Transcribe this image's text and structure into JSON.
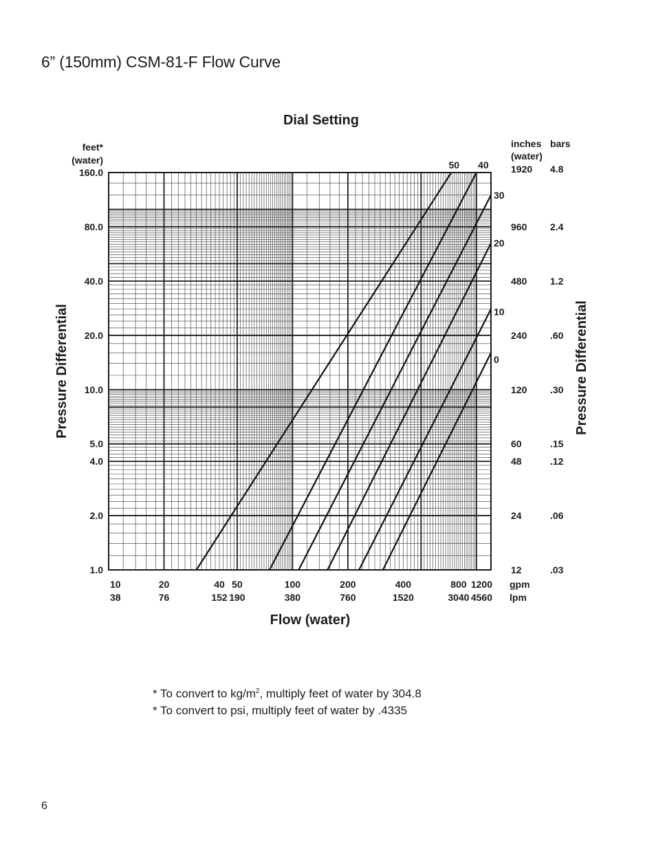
{
  "page": {
    "title": "6” (150mm) CSM-81-F Flow Curve",
    "page_number": "6"
  },
  "footnotes": {
    "kg_pre": "* To convert to kg/m",
    "kg_sup": "2",
    "kg_post": ", multiply feet of water by 304.8",
    "psi": "* To convert to psi, multiply feet of water by .4335"
  },
  "chart_data": {
    "type": "line",
    "title": "Dial Setting",
    "xlabel": "Flow (water)",
    "ylabel": "Pressure Differential",
    "ylabel_right": "Pressure Differential",
    "x_scale": "log",
    "y_scale": "log",
    "xlim": [
      10,
      1200
    ],
    "ylim": [
      1.0,
      160.0
    ],
    "grid": true,
    "left_unit_label": [
      "feet*",
      "(water)"
    ],
    "right_unit_labels": {
      "inches": [
        "inches",
        "(water)"
      ],
      "bars": "bars"
    },
    "x_ticks": [
      {
        "gpm": 10,
        "gpm_label": "10",
        "lpm_label": "38"
      },
      {
        "gpm": 20,
        "gpm_label": "20",
        "lpm_label": "76"
      },
      {
        "gpm": 40,
        "gpm_label": "40",
        "lpm_label": "152"
      },
      {
        "gpm": 50,
        "gpm_label": "50",
        "lpm_label": "190"
      },
      {
        "gpm": 100,
        "gpm_label": "100",
        "lpm_label": "380"
      },
      {
        "gpm": 200,
        "gpm_label": "200",
        "lpm_label": "760"
      },
      {
        "gpm": 400,
        "gpm_label": "400",
        "lpm_label": "1520"
      },
      {
        "gpm": 800,
        "gpm_label": "800",
        "lpm_label": "3040"
      },
      {
        "gpm": 1200,
        "gpm_label": "1200",
        "lpm_label": "4560"
      }
    ],
    "x_unit_labels": [
      "gpm",
      "lpm"
    ],
    "y_ticks": [
      {
        "feet": 160.0,
        "label": "160.0",
        "inches": "1920",
        "bars": "4.8"
      },
      {
        "feet": 80.0,
        "label": "80.0",
        "inches": "960",
        "bars": "2.4"
      },
      {
        "feet": 40.0,
        "label": "40.0",
        "inches": "480",
        "bars": "1.2"
      },
      {
        "feet": 20.0,
        "label": "20.0",
        "inches": "240",
        "bars": ".60"
      },
      {
        "feet": 10.0,
        "label": "10.0",
        "inches": "120",
        "bars": ".30"
      },
      {
        "feet": 5.0,
        "label": "5.0",
        "inches": "60",
        "bars": ".15"
      },
      {
        "feet": 4.0,
        "label": "4.0",
        "inches": "48",
        "bars": ".12"
      },
      {
        "feet": 2.0,
        "label": "2.0",
        "inches": "24",
        "bars": ".06"
      },
      {
        "feet": 1.0,
        "label": "1.0",
        "inches": "12",
        "bars": ".03"
      }
    ],
    "series": [
      {
        "name": "50",
        "x": [
          30,
          730
        ],
        "y": [
          1.0,
          160.0
        ]
      },
      {
        "name": "40",
        "x": [
          75,
          1000
        ],
        "y": [
          1.0,
          160.0
        ]
      },
      {
        "name": "30",
        "x": [
          108,
          1200
        ],
        "y": [
          1.0,
          120.0
        ]
      },
      {
        "name": "20",
        "x": [
          155,
          1200
        ],
        "y": [
          1.0,
          65.0
        ]
      },
      {
        "name": "10",
        "x": [
          230,
          1200
        ],
        "y": [
          1.0,
          28.0
        ]
      },
      {
        "name": "0",
        "x": [
          310,
          1200
        ],
        "y": [
          1.0,
          16.0
        ]
      }
    ]
  }
}
